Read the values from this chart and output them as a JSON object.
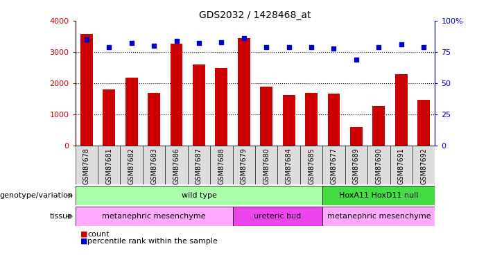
{
  "title": "GDS2032 / 1428468_at",
  "samples": [
    "GSM87678",
    "GSM87681",
    "GSM87682",
    "GSM87683",
    "GSM87686",
    "GSM87687",
    "GSM87688",
    "GSM87679",
    "GSM87680",
    "GSM87684",
    "GSM87685",
    "GSM87677",
    "GSM87689",
    "GSM87690",
    "GSM87691",
    "GSM87692"
  ],
  "counts": [
    3580,
    1800,
    2170,
    1680,
    3270,
    2600,
    2490,
    3450,
    1880,
    1630,
    1680,
    1660,
    600,
    1270,
    2280,
    1470
  ],
  "percentile_ranks": [
    85,
    79,
    82,
    80,
    84,
    82,
    83,
    86,
    79,
    79,
    79,
    78,
    69,
    79,
    81,
    79
  ],
  "bar_color": "#cc0000",
  "dot_color": "#0000cc",
  "ylim_left": [
    0,
    4000
  ],
  "ylim_right": [
    0,
    100
  ],
  "yticks_left": [
    0,
    1000,
    2000,
    3000,
    4000
  ],
  "yticks_right": [
    0,
    25,
    50,
    75,
    100
  ],
  "yticklabels_right": [
    "0",
    "25",
    "50",
    "75",
    "100%"
  ],
  "genotype_groups": [
    {
      "label": "wild type",
      "start": 0,
      "end": 11,
      "color": "#aaffaa"
    },
    {
      "label": "HoxA11 HoxD11 null",
      "start": 11,
      "end": 16,
      "color": "#44dd44"
    }
  ],
  "tissue_groups": [
    {
      "label": "metanephric mesenchyme",
      "start": 0,
      "end": 7,
      "color": "#ffaaff"
    },
    {
      "label": "ureteric bud",
      "start": 7,
      "end": 11,
      "color": "#ee44ee"
    },
    {
      "label": "metanephric mesenchyme",
      "start": 11,
      "end": 16,
      "color": "#ffaaff"
    }
  ],
  "genotype_row_label": "genotype/variation",
  "tissue_row_label": "tissue",
  "legend_count_label": "count",
  "legend_percentile_label": "percentile rank within the sample",
  "background_color": "#ffffff"
}
